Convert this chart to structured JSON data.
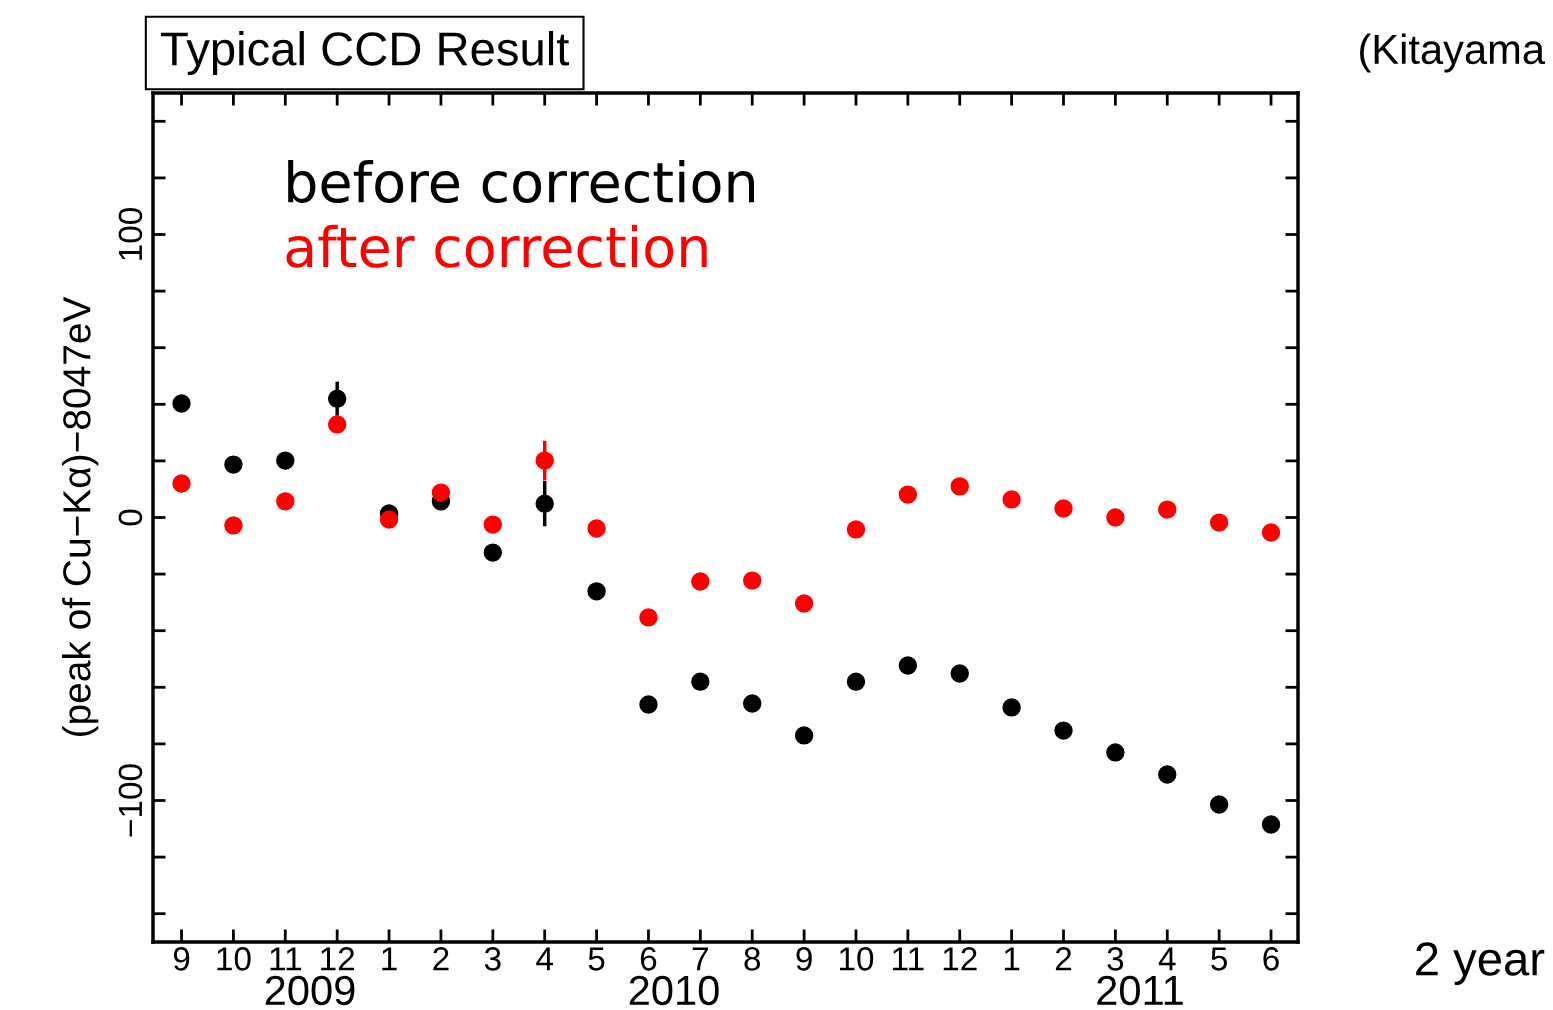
{
  "chart_data": {
    "type": "scatter",
    "title": "Typical CCD Result",
    "ylabel": "(peak of Cu−Kα)−8047eV",
    "categories": [
      "9",
      "10",
      "11",
      "12",
      "1",
      "2",
      "3",
      "4",
      "5",
      "6",
      "7",
      "8",
      "9",
      "10",
      "11",
      "12",
      "1",
      "2",
      "3",
      "4",
      "5",
      "6"
    ],
    "series": [
      {
        "name": "before correction",
        "color": "#000000",
        "values": [
          40.3,
          18.7,
          20.1,
          42.0,
          1.4,
          5.7,
          -12.4,
          4.9,
          -26.1,
          -66.1,
          -58.0,
          -65.7,
          -77.0,
          -58.0,
          -52.3,
          -55.1,
          -67.1,
          -75.3,
          -83.0,
          -90.8,
          -101.4,
          -108.5
        ],
        "errors": [
          null,
          null,
          null,
          6,
          null,
          null,
          null,
          8,
          null,
          null,
          null,
          null,
          null,
          null,
          null,
          null,
          null,
          null,
          null,
          null,
          null,
          null
        ]
      },
      {
        "name": "after correction",
        "color": "#ff0000",
        "values": [
          12.0,
          -2.8,
          5.7,
          32.9,
          -0.7,
          8.8,
          -2.5,
          20.1,
          -3.9,
          -35.3,
          -22.6,
          -22.3,
          -30.4,
          -4.2,
          8.1,
          11.0,
          6.4,
          3.2,
          0.0,
          2.8,
          -1.8,
          -5.3
        ],
        "errors": [
          null,
          null,
          null,
          null,
          null,
          null,
          null,
          7,
          null,
          null,
          null,
          null,
          null,
          null,
          null,
          null,
          null,
          null,
          null,
          null,
          null,
          null
        ]
      }
    ],
    "ylim": [
      -150,
      150
    ],
    "yticks": [
      {
        "value": -140,
        "label": null
      },
      {
        "value": -120,
        "label": null
      },
      {
        "value": -100,
        "label": "−100"
      },
      {
        "value": -80,
        "label": null
      },
      {
        "value": -60,
        "label": null
      },
      {
        "value": -40,
        "label": null
      },
      {
        "value": -20,
        "label": null
      },
      0,
      {
        "value": 20,
        "label": null
      },
      {
        "value": 40,
        "label": null
      },
      {
        "value": 60,
        "label": null
      },
      {
        "value": 80,
        "label": null
      },
      100,
      {
        "value": 120,
        "label": null
      },
      {
        "value": 140,
        "label": null
      }
    ],
    "annotations": [
      "2009",
      "2010",
      "2011",
      "(Kitayama",
      "2 year"
    ],
    "marker": "circle",
    "grid": false,
    "legend": "top left"
  }
}
